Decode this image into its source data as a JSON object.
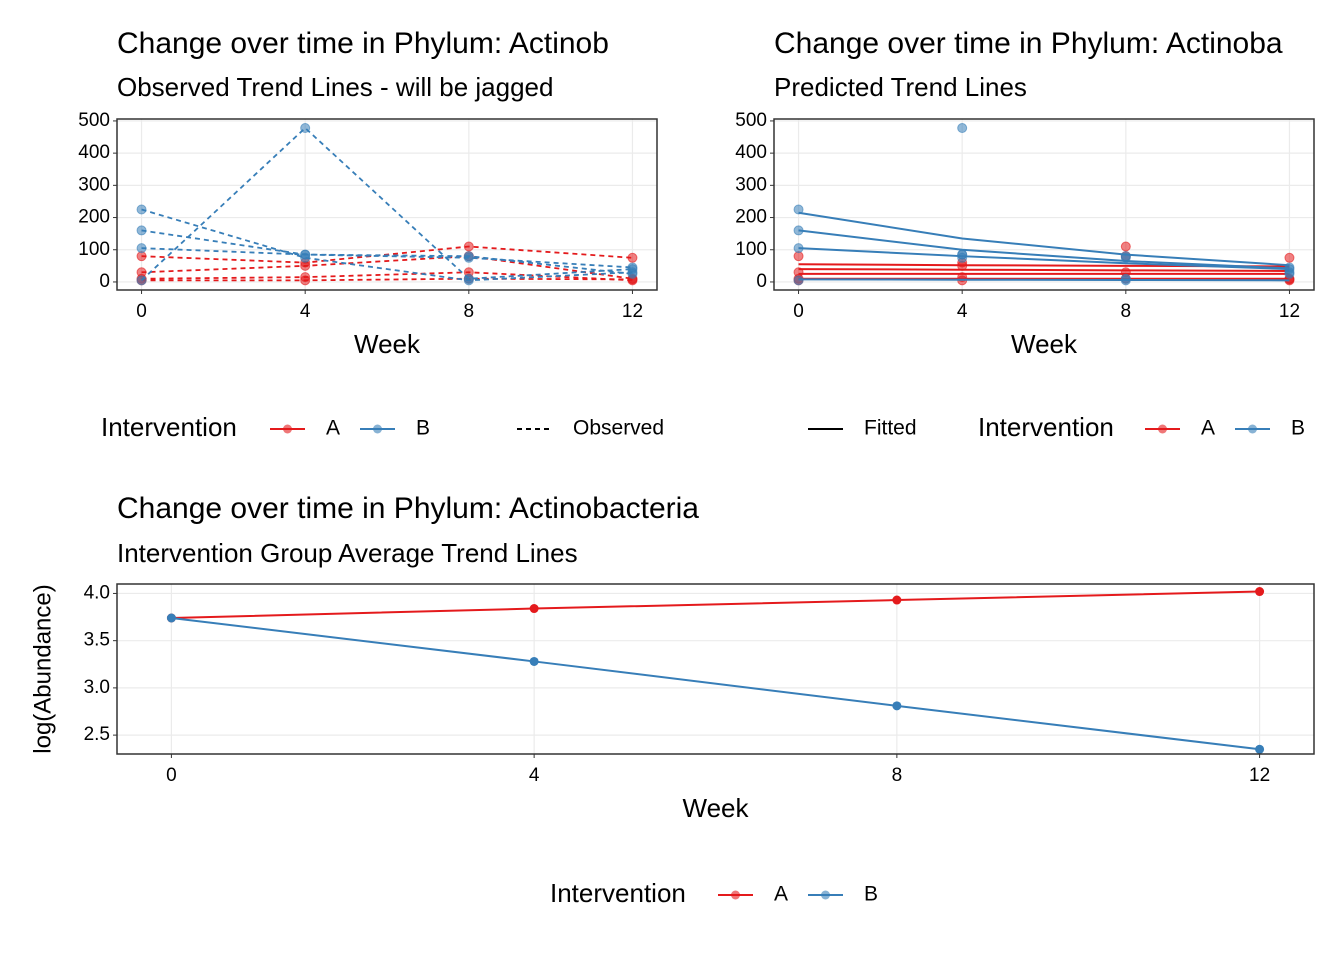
{
  "chart_data": [
    {
      "type": "line",
      "title": "Change over time in Phylum: Actinob",
      "subtitle": "Observed Trend Lines - will be jagged",
      "x_label": "Week",
      "x": [
        0,
        4,
        8,
        12
      ],
      "xlim": [
        -0.6,
        12.6
      ],
      "xticks": [
        0,
        4,
        8,
        12
      ],
      "ylim": [
        -25,
        506
      ],
      "yticks": [
        0,
        100,
        200,
        300,
        400,
        500
      ],
      "grid": true,
      "legend_title": "Intervention",
      "line_label": "Observed",
      "series": [
        {
          "name": "A",
          "color": "#e41a1c",
          "subjects": [
            {
              "observed": [
                80,
                60,
                110,
                75
              ]
            },
            {
              "observed": [
                30,
                50,
                80,
                10
              ]
            },
            {
              "observed": [
                10,
                15,
                30,
                5
              ]
            },
            {
              "observed": [
                5,
                5,
                10,
                8
              ]
            }
          ]
        },
        {
          "name": "B",
          "color": "#377eb8",
          "subjects": [
            {
              "observed": [
                225,
                75,
                5,
                30
              ]
            },
            {
              "observed": [
                5,
                478,
                10,
                40
              ]
            },
            {
              "observed": [
                160,
                85,
                75,
                45
              ]
            },
            {
              "observed": [
                105,
                85,
                80,
                25
              ]
            }
          ]
        }
      ]
    },
    {
      "type": "line",
      "title": "Change over time in Phylum: Actinoba",
      "subtitle": "Predicted Trend Lines",
      "x_label": "Week",
      "x": [
        0,
        4,
        8,
        12
      ],
      "xlim": [
        -0.6,
        12.6
      ],
      "xticks": [
        0,
        4,
        8,
        12
      ],
      "ylim": [
        -25,
        506
      ],
      "yticks": [
        0,
        100,
        200,
        300,
        400,
        500
      ],
      "grid": true,
      "legend_title": "Intervention",
      "line_label": "Fitted",
      "series": [
        {
          "name": "A",
          "color": "#e41a1c",
          "subjects": [
            {
              "observed": [
                80,
                60,
                110,
                75
              ],
              "fitted": [
                55,
                52,
                50,
                48
              ]
            },
            {
              "observed": [
                30,
                50,
                80,
                10
              ],
              "fitted": [
                40,
                38,
                36,
                34
              ]
            },
            {
              "observed": [
                10,
                15,
                30,
                5
              ],
              "fitted": [
                25,
                25,
                25,
                25
              ]
            },
            {
              "observed": [
                5,
                5,
                10,
                8
              ],
              "fitted": [
                10,
                10,
                10,
                10
              ]
            }
          ]
        },
        {
          "name": "B",
          "color": "#377eb8",
          "subjects": [
            {
              "observed": [
                225,
                75,
                5,
                30
              ],
              "fitted": [
                215,
                135,
                85,
                52
              ]
            },
            {
              "observed": [
                5,
                478,
                10,
                40
              ],
              "fitted": [
                8,
                7,
                6,
                5
              ]
            },
            {
              "observed": [
                160,
                85,
                75,
                45
              ],
              "fitted": [
                160,
                100,
                65,
                42
              ]
            },
            {
              "observed": [
                105,
                85,
                80,
                25
              ],
              "fitted": [
                105,
                80,
                58,
                40
              ]
            }
          ]
        }
      ]
    },
    {
      "type": "line",
      "title": "Change over time in Phylum: Actinobacteria",
      "subtitle": "Intervention Group Average Trend Lines",
      "x_label": "Week",
      "y_label": "log(Abundance)",
      "x": [
        0,
        4,
        8,
        12
      ],
      "xlim": [
        -0.6,
        12.6
      ],
      "xticks": [
        0,
        4,
        8,
        12
      ],
      "ylim": [
        2.3,
        4.1
      ],
      "yticks": [
        2.5,
        {
          "value": 3,
          "label": "3.0"
        },
        3.5,
        {
          "value": 4,
          "label": "4.0"
        }
      ],
      "grid": true,
      "legend_title": "Intervention",
      "series": [
        {
          "name": "A",
          "color": "#e41a1c",
          "values": [
            3.74,
            3.84,
            3.93,
            4.02
          ]
        },
        {
          "name": "B",
          "color": "#377eb8",
          "values": [
            3.74,
            3.28,
            2.81,
            2.35
          ]
        }
      ]
    }
  ]
}
